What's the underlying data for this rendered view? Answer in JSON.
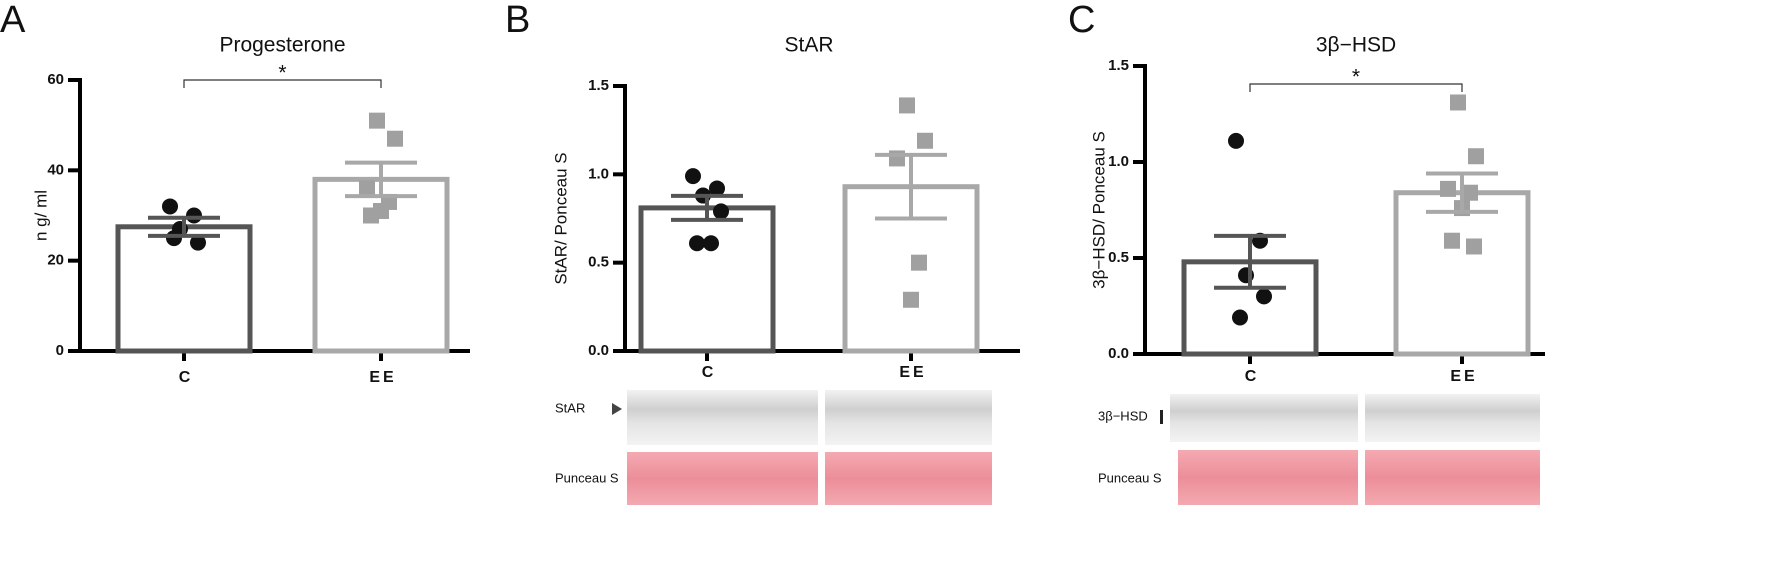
{
  "chart_data": [
    {
      "type": "bar",
      "panel": "A",
      "title": "Progesterone",
      "ylabel": "n g/ ml",
      "categories": [
        "C",
        "EE"
      ],
      "values": [
        27.5,
        38
      ],
      "errors": [
        2,
        3.7
      ],
      "points": [
        [
          32,
          30,
          27,
          24,
          25
        ],
        [
          51,
          47,
          36,
          33,
          31,
          30
        ]
      ],
      "colors": [
        "#555555",
        "#a8a8a8"
      ],
      "point_colors": [
        "#111111",
        "#a0a0a0"
      ],
      "ylim": [
        0,
        60
      ],
      "yticks": [
        0,
        20,
        40,
        60
      ],
      "annotation": "*"
    },
    {
      "type": "bar",
      "panel": "B",
      "title": "StAR",
      "ylabel": "StAR/ Ponceau S",
      "categories": [
        "C",
        "EE"
      ],
      "values": [
        0.81,
        0.93
      ],
      "errors": [
        0.068,
        0.18
      ],
      "points": [
        [
          0.99,
          0.92,
          0.88,
          0.79,
          0.61,
          0.61
        ],
        [
          1.39,
          1.19,
          1.09,
          0.5,
          0.29
        ]
      ],
      "colors": [
        "#555555",
        "#a8a8a8"
      ],
      "point_colors": [
        "#111111",
        "#a0a0a0"
      ],
      "ylim": [
        0,
        1.5
      ],
      "yticks": [
        {
          "value": 0,
          "label": "0.0"
        },
        0.5,
        {
          "value": 1,
          "label": "1.0"
        },
        1.5
      ],
      "blot_labels": [
        "StAR",
        "Punceau S"
      ]
    },
    {
      "type": "bar",
      "panel": "C",
      "title": "3β−HSD",
      "ylabel": "3β−HSD/ Ponceau S",
      "categories": [
        "C",
        "EE"
      ],
      "values": [
        0.48,
        0.84
      ],
      "errors": [
        0.135,
        0.1
      ],
      "points": [
        [
          1.11,
          0.59,
          0.41,
          0.3,
          0.19
        ],
        [
          1.31,
          1.03,
          0.86,
          0.84,
          0.76,
          0.59,
          0.56
        ]
      ],
      "colors": [
        "#555555",
        "#a8a8a8"
      ],
      "point_colors": [
        "#111111",
        "#a0a0a0"
      ],
      "ylim": [
        0,
        1.5
      ],
      "yticks": [
        {
          "value": 0,
          "label": "0.0"
        },
        0.5,
        {
          "value": 1,
          "label": "1.0"
        },
        1.5
      ],
      "annotation": "*",
      "blot_labels": [
        "3β−HSD",
        "Punceau S"
      ]
    }
  ]
}
